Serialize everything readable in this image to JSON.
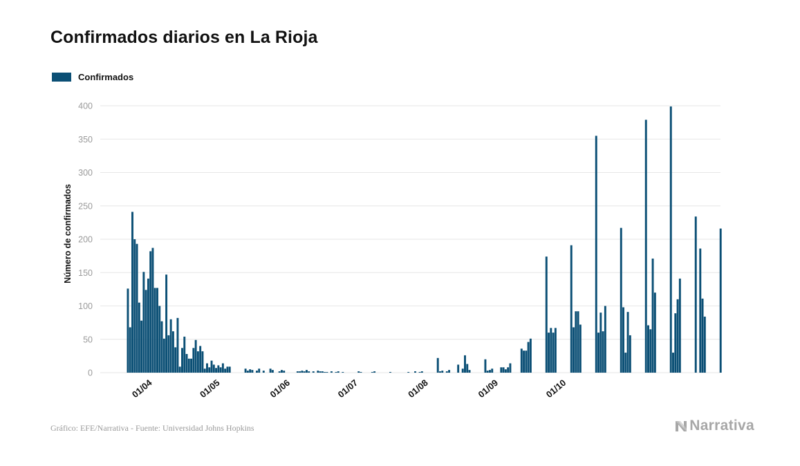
{
  "title": "Confirmados diarios en La Rioja",
  "footer": {
    "source": "Gráfico: EFE/Narrativa - Fuente: Universidad Johns Hopkins",
    "brand": "Narrativa",
    "brand_icon": "narrativa-logo-icon"
  },
  "colors": {
    "bar": "#0b4f75",
    "grid": "#e6e6e6",
    "axis_text": "#9a9a9a",
    "tick_text": "#111111"
  },
  "chart_data": {
    "type": "bar",
    "title": "Confirmados diarios en La Rioja",
    "ylabel": "Número de confirmados",
    "xlabel": "",
    "ylim": [
      0,
      400
    ],
    "yticks": [
      0,
      50,
      100,
      150,
      200,
      250,
      300,
      350,
      400
    ],
    "grid": true,
    "legend_position": "top-left",
    "x_tick_labels": [
      "01/04",
      "01/05",
      "01/06",
      "01/07",
      "01/08",
      "01/09",
      "01/10"
    ],
    "x_start": "2020-03-23",
    "series": [
      {
        "name": "Confirmados",
        "values": [
          126,
          68,
          241,
          200,
          193,
          105,
          78,
          151,
          124,
          141,
          182,
          187,
          127,
          127,
          100,
          77,
          51,
          147,
          56,
          80,
          62,
          38,
          82,
          9,
          37,
          54,
          28,
          21,
          21,
          37,
          49,
          32,
          40,
          32,
          6,
          14,
          8,
          18,
          12,
          7,
          11,
          8,
          14,
          6,
          9,
          9,
          0,
          0,
          0,
          0,
          0,
          0,
          6,
          3,
          5,
          4,
          0,
          3,
          6,
          0,
          3,
          0,
          0,
          6,
          4,
          0,
          0,
          2,
          4,
          3,
          0,
          0,
          0,
          0,
          0,
          2,
          2,
          3,
          2,
          4,
          2,
          0,
          2,
          0,
          3,
          2,
          2,
          1,
          1,
          0,
          2,
          0,
          1,
          2,
          0,
          1,
          0,
          0,
          0,
          0,
          0,
          0,
          2,
          1,
          0,
          0,
          0,
          0,
          1,
          2,
          0,
          0,
          0,
          0,
          0,
          0,
          1,
          0,
          0,
          0,
          0,
          0,
          0,
          0,
          1,
          0,
          0,
          2,
          0,
          1,
          2,
          0,
          0,
          0,
          0,
          0,
          0,
          22,
          2,
          3,
          0,
          2,
          4,
          0,
          0,
          0,
          12,
          0,
          6,
          26,
          13,
          4,
          0,
          0,
          0,
          0,
          0,
          0,
          20,
          3,
          4,
          6,
          0,
          0,
          0,
          8,
          8,
          5,
          8,
          14,
          0,
          0,
          0,
          0,
          36,
          33,
          33,
          46,
          51,
          0,
          0,
          0,
          0,
          0,
          0,
          174,
          60,
          67,
          60,
          67,
          0,
          0,
          0,
          0,
          0,
          0,
          191,
          68,
          92,
          92,
          72,
          0,
          0,
          0,
          0,
          0,
          0,
          355,
          60,
          90,
          62,
          100,
          0,
          0,
          0,
          0,
          0,
          0,
          217,
          98,
          30,
          91,
          56,
          0,
          0,
          0,
          0,
          0,
          0,
          379,
          71,
          65,
          171,
          120,
          0,
          0,
          0,
          0,
          0,
          0,
          399,
          30,
          89,
          110,
          141,
          0,
          0,
          0,
          0,
          0,
          0,
          234,
          0,
          186,
          111,
          84,
          0,
          0,
          0,
          0,
          0,
          0,
          216
        ]
      }
    ]
  }
}
